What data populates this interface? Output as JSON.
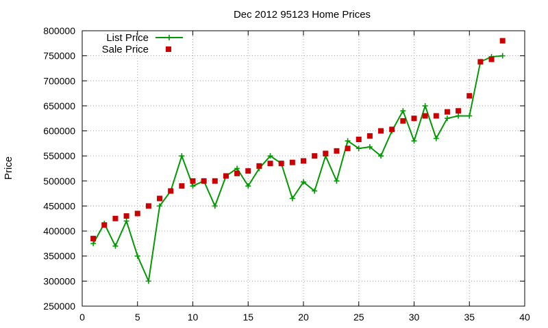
{
  "chart_data": {
    "type": "line",
    "title": "Dec 2012 95123 Home Prices",
    "xlabel": "",
    "ylabel": "Price",
    "xlim": [
      0,
      40
    ],
    "ylim": [
      250000,
      800000
    ],
    "xticks": [
      0,
      5,
      10,
      15,
      20,
      25,
      30,
      35,
      40
    ],
    "yticks": [
      250000,
      300000,
      350000,
      400000,
      450000,
      500000,
      550000,
      600000,
      650000,
      700000,
      750000,
      800000
    ],
    "grid": true,
    "legend_position": "top-left",
    "series": [
      {
        "name": "List Price",
        "style": "line+cross",
        "color": "#009900",
        "x": [
          1,
          2,
          3,
          4,
          5,
          6,
          7,
          8,
          9,
          10,
          11,
          12,
          13,
          14,
          15,
          16,
          17,
          18,
          19,
          20,
          21,
          22,
          23,
          24,
          25,
          26,
          27,
          28,
          29,
          30,
          31,
          32,
          33,
          34,
          35,
          36,
          37,
          38
        ],
        "values": [
          375000,
          415000,
          370000,
          420000,
          350000,
          300000,
          450000,
          480000,
          550000,
          490000,
          500000,
          450000,
          510000,
          525000,
          490000,
          525000,
          550000,
          535000,
          465000,
          498000,
          480000,
          550000,
          500000,
          580000,
          565000,
          568000,
          550000,
          600000,
          640000,
          580000,
          650000,
          585000,
          625000,
          630000,
          630000,
          738000,
          748000,
          750000
        ]
      },
      {
        "name": "Sale Price",
        "style": "square",
        "color": "#cc0000",
        "x": [
          1,
          2,
          3,
          4,
          5,
          6,
          7,
          8,
          9,
          10,
          11,
          12,
          13,
          14,
          15,
          16,
          17,
          18,
          19,
          20,
          21,
          22,
          23,
          24,
          25,
          26,
          27,
          28,
          29,
          30,
          31,
          32,
          33,
          34,
          35,
          36,
          37,
          38
        ],
        "values": [
          385000,
          412000,
          425000,
          430000,
          435000,
          450000,
          465000,
          480000,
          490000,
          500000,
          500000,
          500000,
          510000,
          515000,
          520000,
          530000,
          535000,
          535000,
          537000,
          540000,
          550000,
          555000,
          560000,
          565000,
          583000,
          590000,
          600000,
          603000,
          620000,
          625000,
          630000,
          630000,
          638000,
          640000,
          670000,
          738000,
          743000,
          780000
        ]
      }
    ]
  }
}
